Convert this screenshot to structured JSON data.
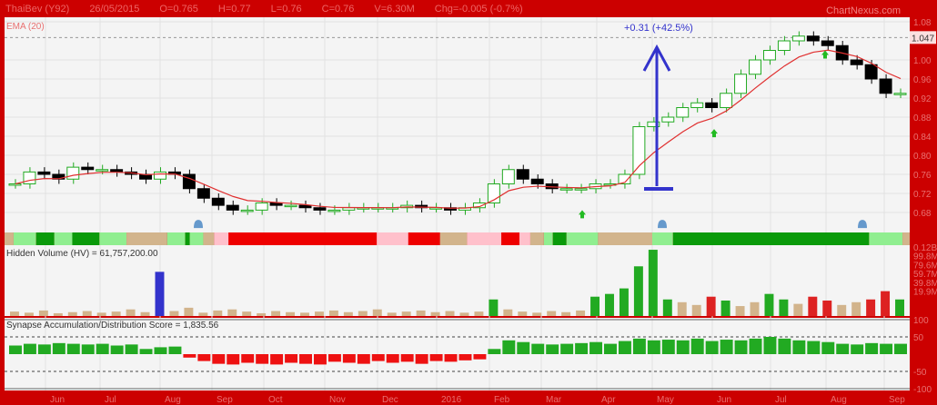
{
  "header": {
    "symbol": "ThaiBev (Y92)",
    "date": "26/05/2015",
    "open": "O=0.765",
    "high": "H=0.77",
    "low": "L=0.76",
    "close": "C=0.76",
    "volume": "V=6.30M",
    "change": "Chg=-0.005 (-0.7%)",
    "brand": "ChartNexus.com"
  },
  "colors": {
    "up": "#22aa22",
    "down": "#000000",
    "ema": "#e03030",
    "bg": "#cc0000",
    "panel": "#f4f4f4",
    "annot": "#3333cc"
  },
  "chart_data": [
    {
      "type": "candlestick",
      "title": "EMA (20)",
      "ylim": [
        0.66,
        1.09
      ],
      "yticks": [
        "1.08",
        "1.00",
        "0.96",
        "0.92",
        "0.88",
        "0.84",
        "0.80",
        "0.76",
        "0.72",
        "0.68"
      ],
      "last_price": "1.047",
      "x_ticks": [
        "Jun",
        "Jul",
        "Aug",
        "Sep",
        "Oct",
        "Nov",
        "Dec",
        "2016",
        "Feb",
        "Mar",
        "Apr",
        "May",
        "Jun",
        "Jul",
        "Aug",
        "Sep"
      ],
      "closes": [
        0.74,
        0.765,
        0.76,
        0.75,
        0.775,
        0.77,
        0.77,
        0.765,
        0.76,
        0.75,
        0.765,
        0.76,
        0.73,
        0.71,
        0.695,
        0.685,
        0.685,
        0.7,
        0.695,
        0.695,
        0.69,
        0.685,
        0.685,
        0.69,
        0.69,
        0.69,
        0.69,
        0.695,
        0.69,
        0.69,
        0.685,
        0.69,
        0.7,
        0.74,
        0.77,
        0.75,
        0.74,
        0.73,
        0.73,
        0.73,
        0.74,
        0.74,
        0.76,
        0.86,
        0.87,
        0.88,
        0.9,
        0.91,
        0.9,
        0.93,
        0.97,
        1.0,
        1.02,
        1.04,
        1.05,
        1.04,
        1.03,
        1.0,
        0.99,
        0.96,
        0.93,
        0.93
      ],
      "annotation": "+0.31 (+42.5%)",
      "signal_band": [
        [
          "tan",
          1
        ],
        [
          "lightgreen",
          2.5
        ],
        [
          "green",
          2
        ],
        [
          "lightgreen",
          2
        ],
        [
          "green",
          3
        ],
        [
          "lightgreen",
          3
        ],
        [
          "tan",
          4.5
        ],
        [
          "lightgreen",
          2
        ],
        [
          "green",
          0.5
        ],
        [
          "lightgreen",
          1.5
        ],
        [
          "tan",
          1.2
        ],
        [
          "pink",
          1.6
        ],
        [
          "red",
          16.4
        ],
        [
          "pink",
          3.5
        ],
        [
          "red",
          3.5
        ],
        [
          "tan",
          3
        ],
        [
          "pink",
          3.8
        ],
        [
          "red",
          2
        ],
        [
          "pink",
          1.2
        ],
        [
          "tan",
          1.5
        ],
        [
          "lightgreen",
          1
        ],
        [
          "green",
          1.5
        ],
        [
          "lightgreen",
          3.5
        ],
        [
          "tan",
          6
        ],
        [
          "lightgreen",
          2.3
        ],
        [
          "green",
          21.7
        ],
        [
          "lightgreen",
          3.7
        ],
        [
          "tan",
          0.8
        ]
      ]
    },
    {
      "type": "bar",
      "title": "Hidden Volume (HV) = 61,757,200.00",
      "ylim": [
        0,
        125
      ],
      "yticks": [
        "0.12B",
        "99.8M",
        "79.6M",
        "59.7M",
        "39.8M",
        "19.9M"
      ],
      "values": [
        8,
        6,
        10,
        5,
        7,
        9,
        6,
        8,
        12,
        7,
        80,
        9,
        15,
        6,
        10,
        12,
        8,
        5,
        9,
        7,
        6,
        8,
        10,
        7,
        9,
        12,
        6,
        8,
        10,
        7,
        9,
        6,
        8,
        30,
        12,
        8,
        6,
        9,
        7,
        10,
        35,
        40,
        50,
        90,
        120,
        30,
        25,
        20,
        35,
        28,
        18,
        25,
        40,
        30,
        22,
        35,
        28,
        20,
        25,
        30,
        45,
        30
      ]
    },
    {
      "type": "bar",
      "title": "Synapse Accumulation/Distribution Score = 1,835.56",
      "ylim": [
        -100,
        100
      ],
      "yticks": [
        "100",
        "50",
        "-50",
        "-100"
      ],
      "values": [
        25,
        30,
        28,
        32,
        30,
        28,
        30,
        25,
        28,
        15,
        20,
        22,
        -10,
        -20,
        -28,
        -30,
        -25,
        -28,
        -30,
        -25,
        -28,
        -30,
        -22,
        -25,
        -28,
        -20,
        -25,
        -22,
        -28,
        -20,
        -22,
        -18,
        -15,
        15,
        40,
        35,
        30,
        28,
        30,
        32,
        35,
        30,
        38,
        45,
        40,
        42,
        40,
        45,
        38,
        42,
        40,
        45,
        50,
        45,
        40,
        38,
        35,
        30,
        28,
        32,
        30,
        30
      ]
    }
  ]
}
